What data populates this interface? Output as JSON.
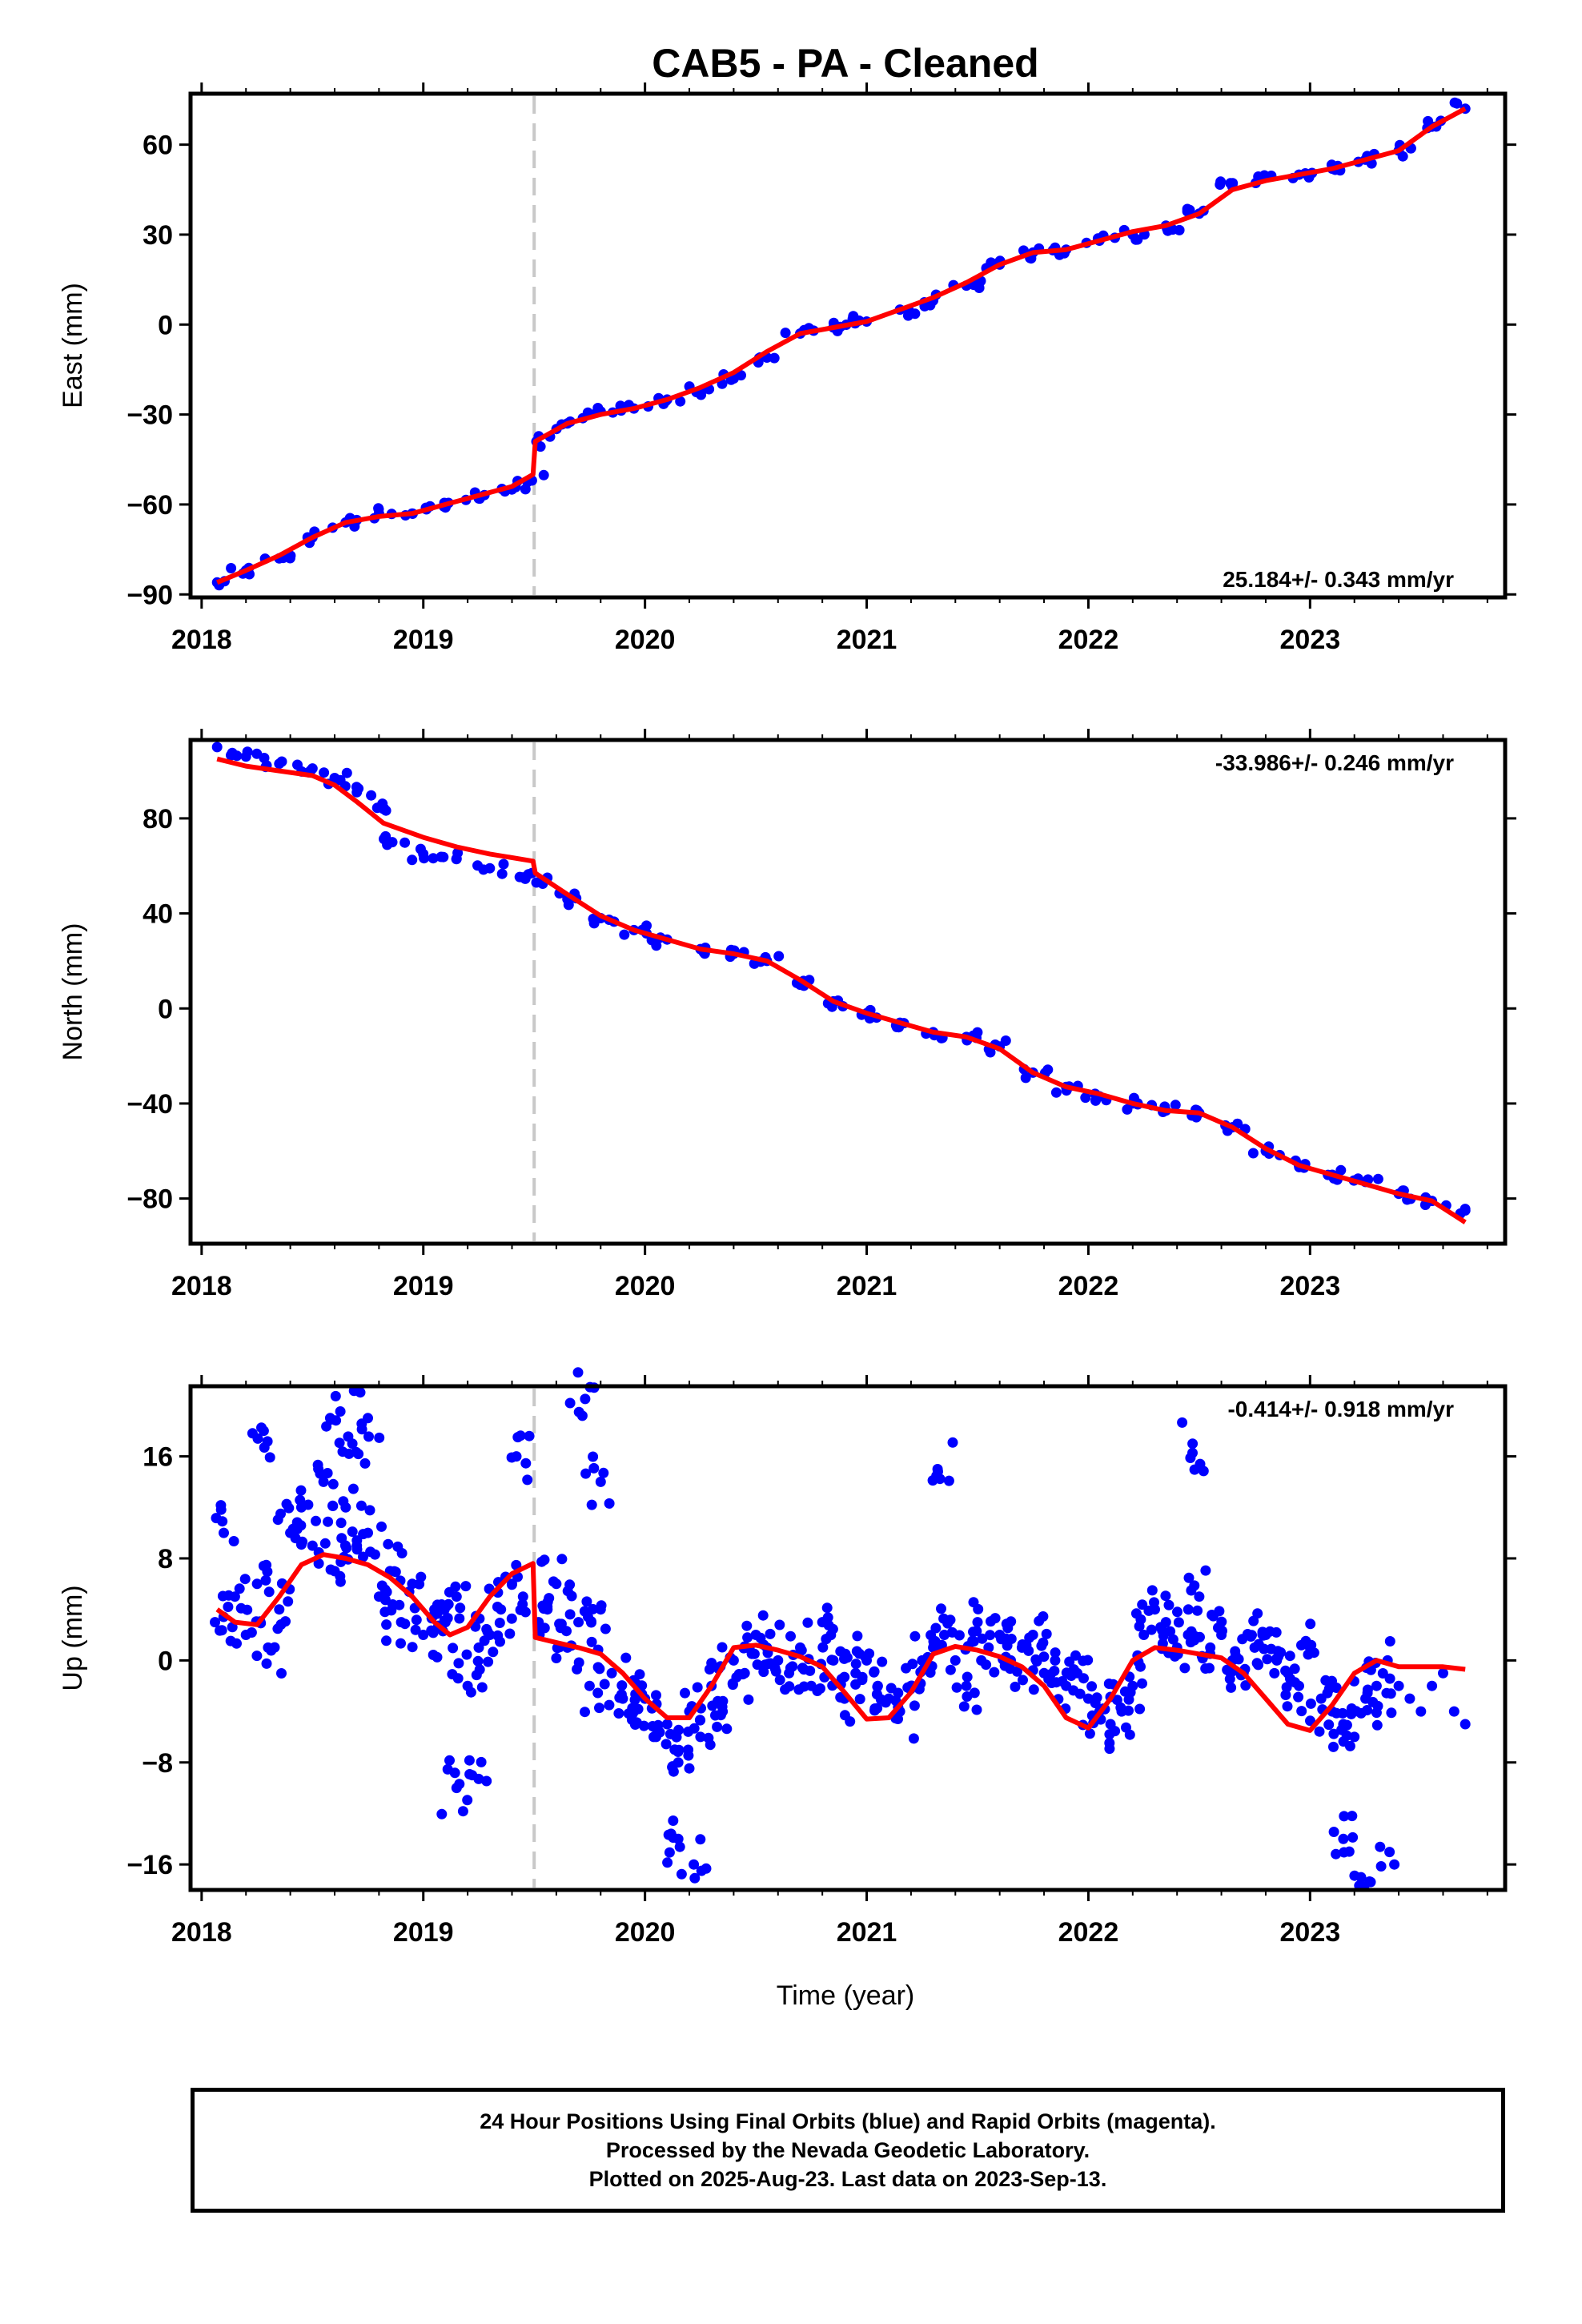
{
  "figure": {
    "title": "CAB5  - PA - Cleaned",
    "xlabel": "Time (year)",
    "footer_lines": [
      "24 Hour Positions Using Final Orbits (blue) and Rapid Orbits (magenta).",
      "Processed by the Nevada Geodetic Laboratory.",
      "Plotted on 2025-Aug-23. Last data on 2023-Sep-13."
    ],
    "colors": {
      "data": "#0000ff",
      "model": "#ff0000",
      "event_line": "#c8c8c8",
      "frame": "#000000"
    }
  },
  "chart_data": [
    {
      "type": "scatter",
      "ylabel": "East (mm)",
      "rate_label": "25.184+/- 0.343 mm/yr",
      "rate_position": "bottom-right",
      "xlim": [
        2017.95,
        2023.88
      ],
      "ylim": [
        -91,
        77
      ],
      "xticks": [
        2018,
        2019,
        2020,
        2021,
        2022,
        2023
      ],
      "xtick_labels": [
        "2018",
        "2019",
        "2020",
        "2021",
        "2022",
        "2023"
      ],
      "yticks": [
        -90,
        -60,
        -30,
        0,
        30,
        60
      ],
      "ytick_labels": [
        "−90",
        "−60",
        "−30",
        "0",
        "30",
        "60"
      ],
      "event_lines": [
        2019.5
      ],
      "grid": false,
      "series": [
        {
          "role": "observations",
          "x": [
            2018.07,
            2018.2,
            2018.35,
            2018.5,
            2018.65,
            2018.8,
            2018.95,
            2019.1,
            2019.25,
            2019.4,
            2019.49,
            2019.51,
            2019.65,
            2019.8,
            2019.95,
            2020.1,
            2020.25,
            2020.4,
            2020.55,
            2020.7,
            2020.85,
            2021.0,
            2021.15,
            2021.3,
            2021.45,
            2021.6,
            2021.75,
            2021.9,
            2022.05,
            2022.2,
            2022.35,
            2022.5,
            2022.65,
            2022.8,
            2022.95,
            2023.1,
            2023.25,
            2023.4,
            2023.55,
            2023.7
          ],
          "y": [
            -86,
            -82,
            -78,
            -71,
            -66,
            -63,
            -63,
            -61,
            -58,
            -55,
            -52,
            -39,
            -33,
            -29,
            -28,
            -25,
            -22,
            -18,
            -11,
            -3,
            -1,
            1,
            5,
            8,
            13,
            20,
            24,
            25,
            28,
            30,
            33,
            37,
            46,
            49,
            50,
            52,
            55,
            58,
            66,
            72
          ]
        },
        {
          "role": "model",
          "x": [
            2018.07,
            2018.2,
            2018.35,
            2018.5,
            2018.65,
            2018.8,
            2018.95,
            2019.1,
            2019.25,
            2019.4,
            2019.495,
            2019.505,
            2019.65,
            2019.8,
            2019.95,
            2020.1,
            2020.25,
            2020.4,
            2020.55,
            2020.7,
            2020.85,
            2021.0,
            2021.15,
            2021.3,
            2021.45,
            2021.6,
            2021.75,
            2021.9,
            2022.05,
            2022.2,
            2022.35,
            2022.5,
            2022.65,
            2022.8,
            2022.95,
            2023.1,
            2023.25,
            2023.4,
            2023.55,
            2023.7
          ],
          "y": [
            -86,
            -82,
            -77,
            -71,
            -66,
            -64,
            -63,
            -60,
            -57,
            -54,
            -50,
            -39,
            -33,
            -30,
            -28,
            -25,
            -21,
            -16,
            -9,
            -3,
            -1,
            1,
            5,
            9,
            14,
            20,
            24,
            25,
            28,
            31,
            33,
            37,
            45,
            48,
            50,
            52,
            55,
            58,
            66,
            72
          ]
        }
      ]
    },
    {
      "type": "scatter",
      "ylabel": "North (mm)",
      "rate_label": "-33.986+/- 0.246 mm/yr",
      "rate_position": "top-right",
      "xlim": [
        2017.95,
        2023.88
      ],
      "ylim": [
        -99,
        113
      ],
      "xticks": [
        2018,
        2019,
        2020,
        2021,
        2022,
        2023
      ],
      "xtick_labels": [
        "2018",
        "2019",
        "2020",
        "2021",
        "2022",
        "2023"
      ],
      "yticks": [
        -80,
        -40,
        0,
        40,
        80
      ],
      "ytick_labels": [
        "−80",
        "−40",
        "0",
        "40",
        "80"
      ],
      "event_lines": [
        2019.5
      ],
      "grid": false,
      "series": [
        {
          "role": "observations",
          "x": [
            2018.07,
            2018.2,
            2018.35,
            2018.5,
            2018.6,
            2018.7,
            2018.82,
            2018.86,
            2019.0,
            2019.15,
            2019.3,
            2019.49,
            2019.51,
            2019.65,
            2019.8,
            2019.95,
            2020.1,
            2020.25,
            2020.4,
            2020.55,
            2020.7,
            2020.85,
            2021.0,
            2021.15,
            2021.3,
            2021.45,
            2021.6,
            2021.75,
            2021.9,
            2022.05,
            2022.2,
            2022.35,
            2022.5,
            2022.65,
            2022.8,
            2022.95,
            2023.1,
            2023.25,
            2023.4,
            2023.55,
            2023.7
          ],
          "y": [
            110,
            106,
            103,
            101,
            97,
            91,
            84,
            70,
            65,
            63,
            59,
            57,
            53,
            46,
            38,
            33,
            29,
            25,
            23,
            20,
            10,
            3,
            -2,
            -6,
            -10,
            -12,
            -16,
            -27,
            -33,
            -37,
            -40,
            -43,
            -44,
            -50,
            -60,
            -66,
            -70,
            -73,
            -78,
            -81,
            -85
          ]
        },
        {
          "role": "model",
          "x": [
            2018.07,
            2018.2,
            2018.35,
            2018.5,
            2018.6,
            2018.7,
            2018.82,
            2019.0,
            2019.15,
            2019.3,
            2019.495,
            2019.505,
            2019.65,
            2019.8,
            2019.95,
            2020.1,
            2020.25,
            2020.4,
            2020.55,
            2020.7,
            2020.85,
            2021.0,
            2021.15,
            2021.3,
            2021.45,
            2021.6,
            2021.75,
            2021.9,
            2022.05,
            2022.2,
            2022.35,
            2022.5,
            2022.65,
            2022.8,
            2022.95,
            2023.1,
            2023.25,
            2023.4,
            2023.55,
            2023.7
          ],
          "y": [
            105,
            102,
            100,
            98,
            94,
            87,
            78,
            72,
            68,
            65,
            62,
            57,
            48,
            39,
            33,
            29,
            25,
            23,
            20,
            12,
            3,
            -2,
            -6,
            -10,
            -12,
            -17,
            -27,
            -33,
            -36,
            -40,
            -43,
            -44,
            -50,
            -59,
            -66,
            -70,
            -74,
            -78,
            -81,
            -90
          ]
        }
      ]
    },
    {
      "type": "scatter",
      "ylabel": "Up (mm)",
      "rate_label": "-0.414+/- 0.918 mm/yr",
      "rate_position": "top-right",
      "xlim": [
        2017.95,
        2023.88
      ],
      "ylim": [
        -18,
        21.5
      ],
      "xticks": [
        2018,
        2019,
        2020,
        2021,
        2022,
        2023
      ],
      "xtick_labels": [
        "2018",
        "2019",
        "2020",
        "2021",
        "2022",
        "2023"
      ],
      "yticks": [
        -16,
        -8,
        0,
        8,
        16
      ],
      "ytick_labels": [
        "−16",
        "−8",
        "0",
        "8",
        "16"
      ],
      "event_lines": [
        2019.5
      ],
      "grid": false,
      "series": [
        {
          "role": "observations",
          "x": [
            2018.06,
            2018.1,
            2018.15,
            2018.2,
            2018.25,
            2018.3,
            2018.35,
            2018.4,
            2018.45,
            2018.5,
            2018.55,
            2018.6,
            2018.65,
            2018.7,
            2018.75,
            2018.8,
            2018.85,
            2018.9,
            2018.95,
            2019.0,
            2019.05,
            2019.1,
            2019.15,
            2019.2,
            2019.25,
            2019.3,
            2019.35,
            2019.4,
            2019.45,
            2019.52,
            2019.56,
            2019.6,
            2019.65,
            2019.7,
            2019.75,
            2019.8,
            2019.85,
            2019.9,
            2019.95,
            2020.0,
            2020.05,
            2020.1,
            2020.15,
            2020.2,
            2020.25,
            2020.3,
            2020.35,
            2020.4,
            2020.45,
            2020.5,
            2020.55,
            2020.6,
            2020.65,
            2020.7,
            2020.75,
            2020.8,
            2020.85,
            2020.9,
            2020.95,
            2021.0,
            2021.05,
            2021.1,
            2021.15,
            2021.2,
            2021.25,
            2021.3,
            2021.35,
            2021.4,
            2021.45,
            2021.5,
            2021.55,
            2021.6,
            2021.65,
            2021.7,
            2021.75,
            2021.8,
            2021.85,
            2021.9,
            2021.95,
            2022.0,
            2022.05,
            2022.1,
            2022.15,
            2022.2,
            2022.25,
            2022.3,
            2022.35,
            2022.4,
            2022.45,
            2022.5,
            2022.55,
            2022.6,
            2022.65,
            2022.7,
            2022.75,
            2022.8,
            2022.85,
            2022.9,
            2022.95,
            2023.0,
            2023.05,
            2023.1,
            2023.15,
            2023.2,
            2023.25,
            2023.3,
            2023.35,
            2023.4,
            2023.45,
            2023.5,
            2023.55,
            2023.6,
            2023.65,
            2023.7,
            2018.28,
            2018.58,
            2018.68,
            2018.75,
            2019.15,
            2019.22,
            2019.42,
            2019.73,
            2019.8,
            2020.15,
            2020.22,
            2021.32,
            2022.47,
            2023.15,
            2023.23,
            2023.38
          ],
          "y": [
            3,
            10,
            5,
            2,
            6,
            1,
            4,
            10,
            12,
            9,
            14,
            7,
            12,
            9,
            10,
            5,
            7,
            3,
            6,
            2,
            4,
            3,
            5,
            -2,
            1,
            2,
            4,
            6,
            5,
            3,
            4,
            6,
            1,
            3,
            -2,
            4,
            -1,
            -3,
            -4,
            -3,
            -6,
            -5,
            -8,
            -4,
            -6,
            -2,
            -4,
            0,
            -1,
            2,
            1,
            0,
            -1,
            1,
            -2,
            3,
            0,
            -3,
            -1,
            0,
            -2,
            -3,
            -4,
            -2,
            0,
            1,
            2,
            0,
            -2,
            3,
            1,
            2,
            0,
            1,
            2,
            -1,
            0,
            -2,
            -1,
            -3,
            -4,
            -5,
            -4,
            -2,
            2,
            4,
            3,
            1,
            2,
            5,
            1,
            2,
            0,
            -1,
            1,
            2,
            0,
            -1,
            -2,
            1,
            -3,
            -4,
            -5,
            -6,
            -3,
            -2,
            0,
            -2,
            -3,
            -4,
            -2,
            -1,
            -4,
            -5,
            18,
            19,
            17,
            19,
            -10,
            -9,
            16,
            20.5,
            14,
            -14,
            -16,
            15,
            17,
            -14,
            -17,
            -16
          ]
        },
        {
          "role": "model",
          "x": [
            2018.07,
            2018.15,
            2018.25,
            2018.35,
            2018.45,
            2018.55,
            2018.65,
            2018.75,
            2018.85,
            2018.95,
            2019.05,
            2019.12,
            2019.2,
            2019.3,
            2019.4,
            2019.495,
            2019.505,
            2019.6,
            2019.7,
            2019.8,
            2019.9,
            2020.0,
            2020.1,
            2020.2,
            2020.3,
            2020.4,
            2020.5,
            2020.6,
            2020.7,
            2020.8,
            2020.9,
            2021.0,
            2021.1,
            2021.2,
            2021.3,
            2021.4,
            2021.5,
            2021.6,
            2021.7,
            2021.8,
            2021.9,
            2022.0,
            2022.1,
            2022.2,
            2022.3,
            2022.4,
            2022.5,
            2022.6,
            2022.7,
            2022.8,
            2022.9,
            2023.0,
            2023.1,
            2023.2,
            2023.3,
            2023.4,
            2023.5,
            2023.6,
            2023.7
          ],
          "y": [
            4,
            3,
            2.8,
            5,
            7.5,
            8.3,
            8,
            7.5,
            6.5,
            5,
            3,
            2,
            2.6,
            5,
            6.8,
            7.6,
            1.8,
            1.4,
            1,
            0.5,
            -1,
            -3,
            -4.5,
            -4.5,
            -2,
            1,
            1.2,
            0.8,
            0.3,
            -0.5,
            -2.5,
            -4.6,
            -4.5,
            -2.5,
            0.5,
            1.1,
            0.8,
            0.3,
            -0.5,
            -2,
            -4.5,
            -5.3,
            -3,
            0,
            1,
            0.8,
            0.5,
            0.2,
            -1,
            -3,
            -5,
            -5.5,
            -3.5,
            -1,
            0,
            -0.5,
            -0.5,
            -0.5,
            -0.7
          ]
        }
      ]
    }
  ]
}
